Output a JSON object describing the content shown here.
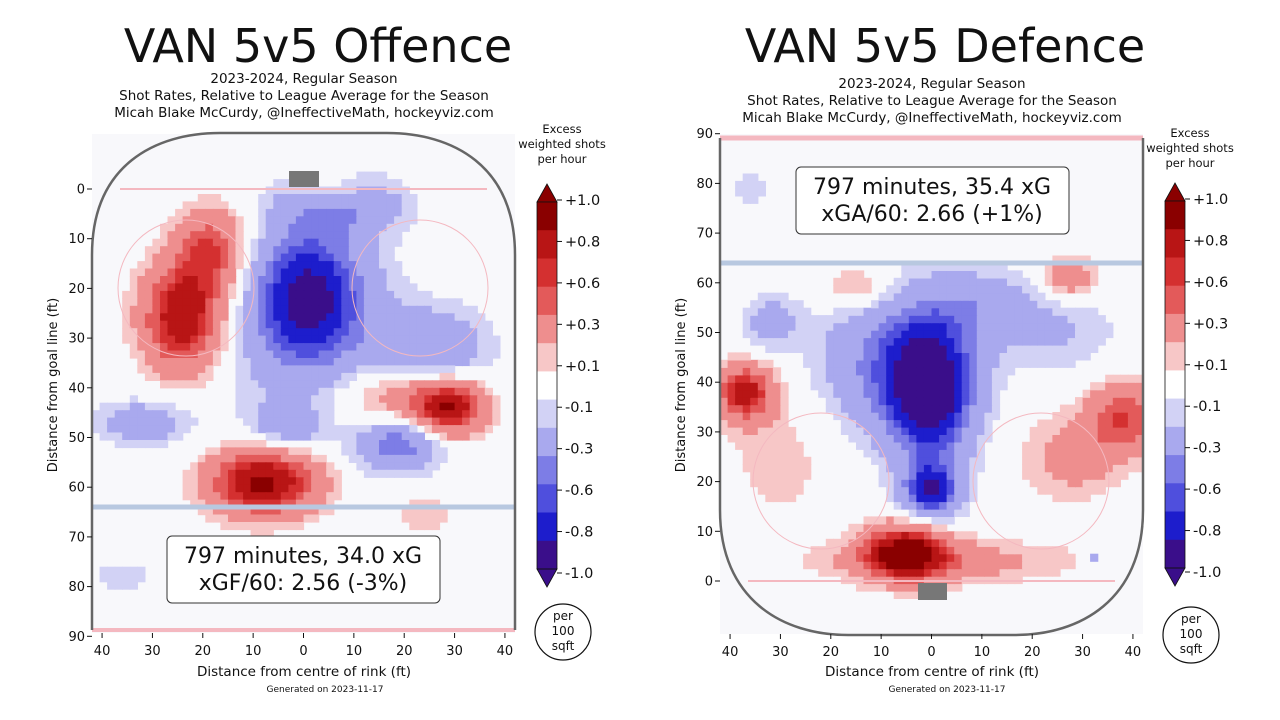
{
  "colors": {
    "pos": [
      "#ffffff",
      "#f7c7c7",
      "#ee8e8e",
      "#e35a5a",
      "#d43030",
      "#b81515",
      "#8a0000"
    ],
    "neg": [
      "#ffffff",
      "#d2d2f5",
      "#a9a9ee",
      "#7d7de6",
      "#4f4fdd",
      "#1d1dcc",
      "#3a0e8a"
    ],
    "rink_line": "#666666",
    "goal_line": "#f4b8c0",
    "blue_line": "#b8c8e0",
    "goal": "#777777"
  },
  "chart_data": [
    {
      "type": "heatmap",
      "title": "VAN 5v5 Offence",
      "subtitle_lines": [
        "2023-2024, Regular Season",
        "Shot Rates, Relative to League Average for the Season",
        "Micah Blake McCurdy, @IneffectiveMath, hockeyviz.com"
      ],
      "xlabel": "Distance from centre of rink (ft)",
      "ylabel": "Distance from goal line (ft)",
      "x_ticks": [
        40,
        30,
        20,
        10,
        0,
        10,
        20,
        30,
        40
      ],
      "y_ticks": [
        0,
        10,
        20,
        30,
        40,
        50,
        60,
        70,
        80,
        90
      ],
      "xlim": [
        -42,
        42
      ],
      "ylim": [
        -11,
        89
      ],
      "goal_at_top": true,
      "blue_line_y": 64,
      "goal_line_y": 0,
      "annotation_lines": [
        "797 minutes, 34.0 xG",
        "xGF/60: 2.56 (-3%)"
      ],
      "footer": "Generated on 2023-11-17",
      "hotspots": [
        {
          "x": -24,
          "y": 26,
          "sx": 6,
          "sy": 8,
          "amp": 0.95
        },
        {
          "x": -18,
          "y": 12,
          "sx": 5,
          "sy": 6,
          "amp": 0.6
        },
        {
          "x": 1,
          "y": 22,
          "sx": 8,
          "sy": 10,
          "amp": -0.95
        },
        {
          "x": 8,
          "y": 3,
          "sx": 8,
          "sy": 4,
          "amp": -0.5
        },
        {
          "x": 25,
          "y": 33,
          "sx": 8,
          "sy": 6,
          "amp": -0.45
        },
        {
          "x": 6,
          "y": 1,
          "sx": 5,
          "sy": 3,
          "amp": 0.35
        },
        {
          "x": 20,
          "y": 42,
          "sx": 9,
          "sy": 5,
          "amp": 0.45
        },
        {
          "x": 29,
          "y": 44,
          "sx": 5,
          "sy": 4,
          "amp": 0.8
        },
        {
          "x": 19,
          "y": 51,
          "sx": 6,
          "sy": 4,
          "amp": -0.6
        },
        {
          "x": -32,
          "y": 47,
          "sx": 6,
          "sy": 3,
          "amp": -0.35
        },
        {
          "x": -3,
          "y": 48,
          "sx": 5,
          "sy": 3,
          "amp": -0.35
        },
        {
          "x": -8,
          "y": 59,
          "sx": 8,
          "sy": 5,
          "amp": 1.0
        },
        {
          "x": 24,
          "y": 65,
          "sx": 4,
          "sy": 3,
          "amp": 0.2
        },
        {
          "x": -36,
          "y": 78,
          "sx": 4,
          "sy": 2,
          "amp": -0.2
        },
        {
          "x": -5,
          "y": 34,
          "sx": 20,
          "sy": 18,
          "amp": -0.12
        }
      ]
    },
    {
      "type": "heatmap",
      "title": "VAN 5v5 Defence",
      "subtitle_lines": [
        "2023-2024, Regular Season",
        "Shot Rates, Relative to League Average for the Season",
        "Micah Blake McCurdy, @IneffectiveMath, hockeyviz.com"
      ],
      "xlabel": "Distance from centre of rink (ft)",
      "ylabel": "Distance from goal line (ft)",
      "x_ticks": [
        40,
        30,
        20,
        10,
        0,
        10,
        20,
        30,
        40
      ],
      "y_ticks": [
        0,
        10,
        20,
        30,
        40,
        50,
        60,
        70,
        80,
        90
      ],
      "xlim": [
        -42,
        42
      ],
      "ylim": [
        -11,
        89
      ],
      "goal_at_top": false,
      "blue_line_y": 64,
      "goal_line_y": 0,
      "annotation_lines": [
        "797 minutes, 35.4 xG",
        "xGA/60: 2.66 (+1%)"
      ],
      "footer": "Generated on 2023-11-17",
      "hotspots": [
        {
          "x": -5,
          "y": 6,
          "sx": 6,
          "sy": 4,
          "amp": 1.0
        },
        {
          "x": 3,
          "y": 4,
          "sx": 18,
          "sy": 3,
          "amp": 0.3
        },
        {
          "x": 0,
          "y": 38,
          "sx": 6,
          "sy": 10,
          "amp": -0.95
        },
        {
          "x": 0,
          "y": 18,
          "sx": 4,
          "sy": 4,
          "amp": -0.8
        },
        {
          "x": -8,
          "y": 44,
          "sx": 10,
          "sy": 10,
          "amp": -0.5
        },
        {
          "x": 10,
          "y": 56,
          "sx": 8,
          "sy": 5,
          "amp": -0.3
        },
        {
          "x": -37,
          "y": 38,
          "sx": 4,
          "sy": 4,
          "amp": 0.8
        },
        {
          "x": 38,
          "y": 33,
          "sx": 5,
          "sy": 5,
          "amp": 0.6
        },
        {
          "x": 28,
          "y": 25,
          "sx": 7,
          "sy": 6,
          "amp": 0.3
        },
        {
          "x": 27,
          "y": 61,
          "sx": 4,
          "sy": 3,
          "amp": 0.4
        },
        {
          "x": -15,
          "y": 59,
          "sx": 5,
          "sy": 3,
          "amp": 0.3
        },
        {
          "x": -32,
          "y": 52,
          "sx": 4,
          "sy": 4,
          "amp": -0.3
        },
        {
          "x": -36,
          "y": 79,
          "sx": 2,
          "sy": 3,
          "amp": -0.2
        },
        {
          "x": 25,
          "y": 50,
          "sx": 9,
          "sy": 6,
          "amp": -0.2
        },
        {
          "x": -30,
          "y": 25,
          "sx": 8,
          "sy": 10,
          "amp": 0.15
        },
        {
          "x": 32,
          "y": 5,
          "sx": 1,
          "sy": 1,
          "amp": -0.3
        }
      ]
    }
  ],
  "colorbar": {
    "title_lines": [
      "Excess",
      "weighted shots",
      "per hour"
    ],
    "tick_labels": [
      "+1.0",
      "+0.8",
      "+0.6",
      "+0.3",
      "+0.1",
      "-0.1",
      "-0.3",
      "-0.6",
      "-0.8",
      "-1.0"
    ],
    "unit_lines": [
      "per",
      "100",
      "sqft"
    ]
  }
}
